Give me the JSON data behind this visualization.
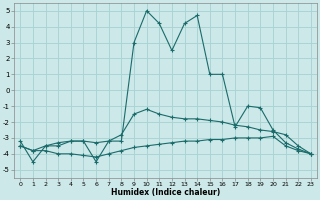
{
  "xlabel": "Humidex (Indice chaleur)",
  "xlim": [
    -0.5,
    23.5
  ],
  "ylim": [
    -5.5,
    5.5
  ],
  "xticks": [
    0,
    1,
    2,
    3,
    4,
    5,
    6,
    7,
    8,
    9,
    10,
    11,
    12,
    13,
    14,
    15,
    16,
    17,
    18,
    19,
    20,
    21,
    22,
    23
  ],
  "yticks": [
    -5,
    -4,
    -3,
    -2,
    -1,
    0,
    1,
    2,
    3,
    4,
    5
  ],
  "bg_color": "#cce8e8",
  "grid_color": "#aad4d4",
  "line_color": "#1a6b6b",
  "line1": [
    [
      0,
      -3.2
    ],
    [
      1,
      -4.5
    ],
    [
      2,
      -3.5
    ],
    [
      3,
      -3.5
    ],
    [
      4,
      -3.2
    ],
    [
      5,
      -3.2
    ],
    [
      6,
      -4.5
    ],
    [
      7,
      -3.2
    ],
    [
      8,
      -3.2
    ],
    [
      9,
      3.0
    ],
    [
      10,
      5.0
    ],
    [
      11,
      4.2
    ],
    [
      12,
      2.5
    ],
    [
      13,
      4.2
    ],
    [
      14,
      4.7
    ],
    [
      15,
      1.0
    ],
    [
      16,
      1.0
    ],
    [
      17,
      -2.3
    ],
    [
      18,
      -1.0
    ],
    [
      19,
      -1.1
    ],
    [
      20,
      -2.5
    ],
    [
      21,
      -3.3
    ],
    [
      22,
      -3.7
    ],
    [
      23,
      -4.0
    ]
  ],
  "line2": [
    [
      0,
      -3.5
    ],
    [
      1,
      -3.8
    ],
    [
      2,
      -3.5
    ],
    [
      3,
      -3.3
    ],
    [
      4,
      -3.2
    ],
    [
      5,
      -3.2
    ],
    [
      6,
      -3.3
    ],
    [
      7,
      -3.2
    ],
    [
      8,
      -2.8
    ],
    [
      9,
      -1.5
    ],
    [
      10,
      -1.2
    ],
    [
      11,
      -1.5
    ],
    [
      12,
      -1.7
    ],
    [
      13,
      -1.8
    ],
    [
      14,
      -1.8
    ],
    [
      15,
      -1.9
    ],
    [
      16,
      -2.0
    ],
    [
      17,
      -2.2
    ],
    [
      18,
      -2.3
    ],
    [
      19,
      -2.5
    ],
    [
      20,
      -2.6
    ],
    [
      21,
      -2.8
    ],
    [
      22,
      -3.5
    ],
    [
      23,
      -4.0
    ]
  ],
  "line3": [
    [
      0,
      -3.5
    ],
    [
      1,
      -3.8
    ],
    [
      2,
      -3.8
    ],
    [
      3,
      -4.0
    ],
    [
      4,
      -4.0
    ],
    [
      5,
      -4.1
    ],
    [
      6,
      -4.2
    ],
    [
      7,
      -4.0
    ],
    [
      8,
      -3.8
    ],
    [
      9,
      -3.6
    ],
    [
      10,
      -3.5
    ],
    [
      11,
      -3.4
    ],
    [
      12,
      -3.3
    ],
    [
      13,
      -3.2
    ],
    [
      14,
      -3.2
    ],
    [
      15,
      -3.1
    ],
    [
      16,
      -3.1
    ],
    [
      17,
      -3.0
    ],
    [
      18,
      -3.0
    ],
    [
      19,
      -3.0
    ],
    [
      20,
      -2.9
    ],
    [
      21,
      -3.5
    ],
    [
      22,
      -3.8
    ],
    [
      23,
      -4.0
    ]
  ]
}
